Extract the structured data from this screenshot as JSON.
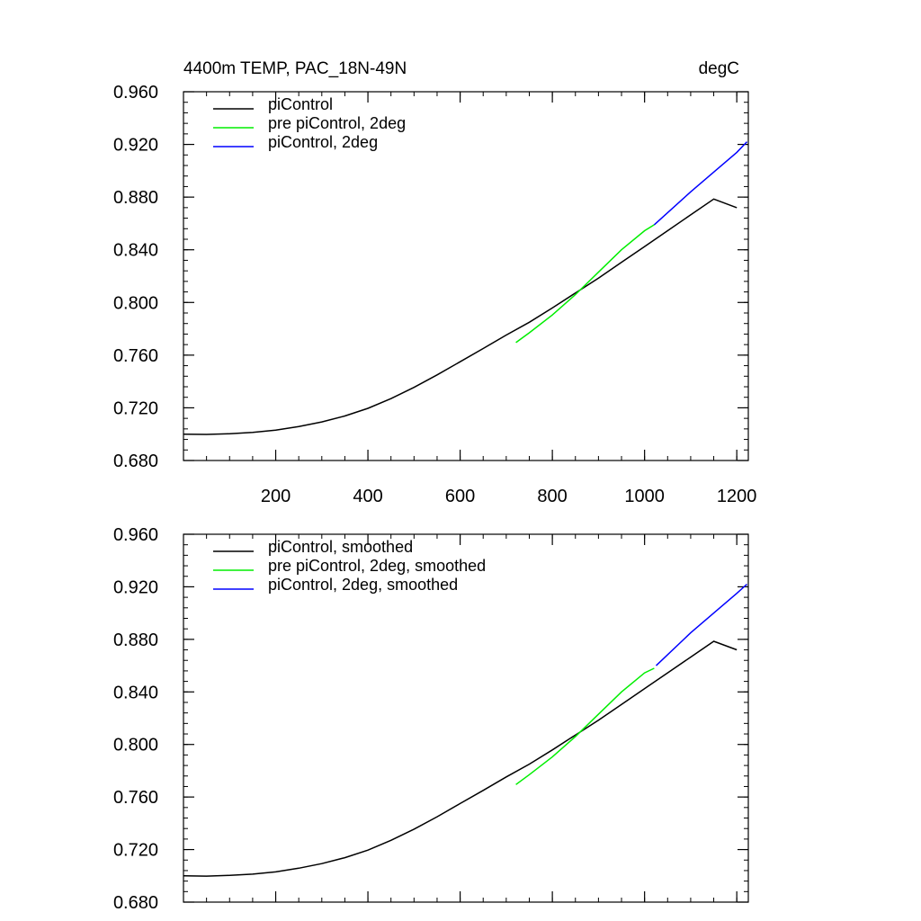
{
  "figure": {
    "title_left": "4400m TEMP, PAC_18N-49N",
    "title_right": "degC"
  },
  "chart_data": [
    {
      "type": "line",
      "title": "4400m TEMP, PAC_18N-49N",
      "units": "degC",
      "xlim": [
        0,
        1225
      ],
      "ylim": [
        0.68,
        0.96
      ],
      "xticks": [
        200,
        400,
        600,
        800,
        1000,
        1200
      ],
      "xtick_labels": [
        "200",
        "400",
        "600",
        "800",
        "1000",
        "1200"
      ],
      "yticks": [
        0.68,
        0.72,
        0.76,
        0.8,
        0.84,
        0.88,
        0.92,
        0.96
      ],
      "ytick_labels": [
        "0.680",
        "0.720",
        "0.760",
        "0.800",
        "0.840",
        "0.880",
        "0.920",
        "0.960"
      ],
      "legend_position": "top-left",
      "series": [
        {
          "name": "piControl",
          "color": "#000000",
          "x": [
            1,
            50,
            100,
            150,
            200,
            250,
            300,
            350,
            400,
            450,
            500,
            550,
            600,
            650,
            700,
            750,
            800,
            850,
            900,
            950,
            1000,
            1050,
            1100,
            1150,
            1200
          ],
          "y": [
            0.7,
            0.6998,
            0.7003,
            0.7013,
            0.703,
            0.7058,
            0.7093,
            0.7138,
            0.7196,
            0.727,
            0.7355,
            0.745,
            0.755,
            0.765,
            0.7753,
            0.785,
            0.7958,
            0.8072,
            0.8185,
            0.8305,
            0.8425,
            0.8545,
            0.8665,
            0.8785,
            0.872
          ]
        },
        {
          "name": "pre piControl, 2deg",
          "color": "#00ee00",
          "x": [
            721,
            750,
            800,
            850,
            900,
            950,
            1000,
            1021
          ],
          "y": [
            0.7695,
            0.777,
            0.7905,
            0.806,
            0.823,
            0.84,
            0.8545,
            0.859
          ]
        },
        {
          "name": "piControl, 2deg",
          "color": "#0000ff",
          "x": [
            1021,
            1100,
            1150,
            1200,
            1222
          ],
          "y": [
            0.859,
            0.884,
            0.899,
            0.914,
            0.922
          ]
        }
      ]
    },
    {
      "type": "line",
      "xlim": [
        0,
        1225
      ],
      "ylim": [
        0.68,
        0.96
      ],
      "xticks": [
        200,
        400,
        600,
        800,
        1000,
        1200
      ],
      "yticks": [
        0.68,
        0.72,
        0.76,
        0.8,
        0.84,
        0.88,
        0.92,
        0.96
      ],
      "ytick_labels": [
        "0.680",
        "0.720",
        "0.760",
        "0.800",
        "0.840",
        "0.880",
        "0.920",
        "0.960"
      ],
      "legend_position": "top-left",
      "series": [
        {
          "name": "piControl, smoothed",
          "color": "#000000",
          "x": [
            1,
            50,
            100,
            150,
            200,
            250,
            300,
            350,
            400,
            450,
            500,
            550,
            600,
            650,
            700,
            750,
            800,
            850,
            900,
            950,
            1000,
            1050,
            1100,
            1150,
            1200
          ],
          "y": [
            0.7,
            0.6998,
            0.7003,
            0.7013,
            0.703,
            0.7058,
            0.7093,
            0.7138,
            0.7196,
            0.727,
            0.7355,
            0.745,
            0.755,
            0.765,
            0.7753,
            0.785,
            0.7958,
            0.8072,
            0.8185,
            0.8305,
            0.8425,
            0.8545,
            0.8665,
            0.8785,
            0.872
          ]
        },
        {
          "name": "pre piControl, 2deg, smoothed",
          "color": "#00ee00",
          "x": [
            721,
            750,
            800,
            850,
            900,
            950,
            1000,
            1021
          ],
          "y": [
            0.7695,
            0.777,
            0.7905,
            0.806,
            0.823,
            0.84,
            0.8545,
            0.858
          ]
        },
        {
          "name": "piControl, 2deg, smoothed",
          "color": "#0000ff",
          "x": [
            1025,
            1100,
            1150,
            1200,
            1222
          ],
          "y": [
            0.86,
            0.885,
            0.9,
            0.915,
            0.922
          ]
        }
      ]
    }
  ]
}
